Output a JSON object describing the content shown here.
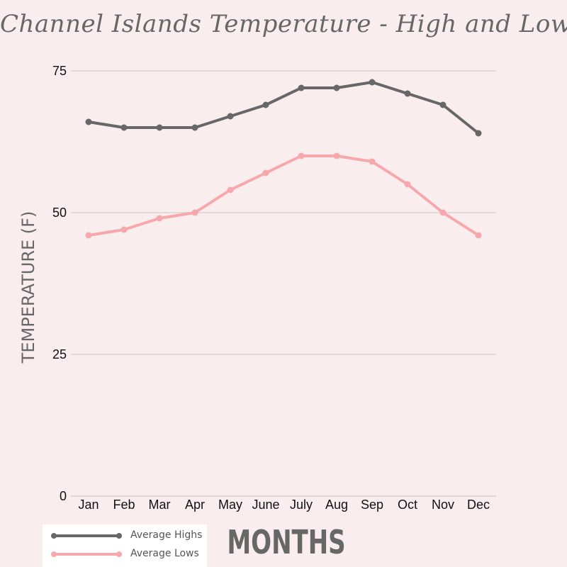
{
  "chart_data": {
    "type": "line",
    "title": "Channel Islands Temperature - High and Lows",
    "xlabel": "MONTHS",
    "ylabel": "TEMPERATURE (F)",
    "categories": [
      "Jan",
      "Feb",
      "Mar",
      "Apr",
      "May",
      "June",
      "July",
      "Aug",
      "Sep",
      "Oct",
      "Nov",
      "Dec"
    ],
    "ylim": [
      0,
      75
    ],
    "yticks": [
      0,
      25,
      50,
      75
    ],
    "grid": true,
    "legend_position": "bottom-left",
    "series": [
      {
        "name": "Average Highs",
        "color": "#676767",
        "values": [
          66,
          65,
          65,
          65,
          67,
          69,
          72,
          72,
          73,
          71,
          69,
          64
        ]
      },
      {
        "name": "Average Lows",
        "color": "#f7a8ad",
        "values": [
          46,
          47,
          49,
          50,
          54,
          57,
          60,
          60,
          59,
          55,
          50,
          46
        ]
      }
    ],
    "gridline_color": "#d9cccc",
    "background": "#f9eded"
  }
}
